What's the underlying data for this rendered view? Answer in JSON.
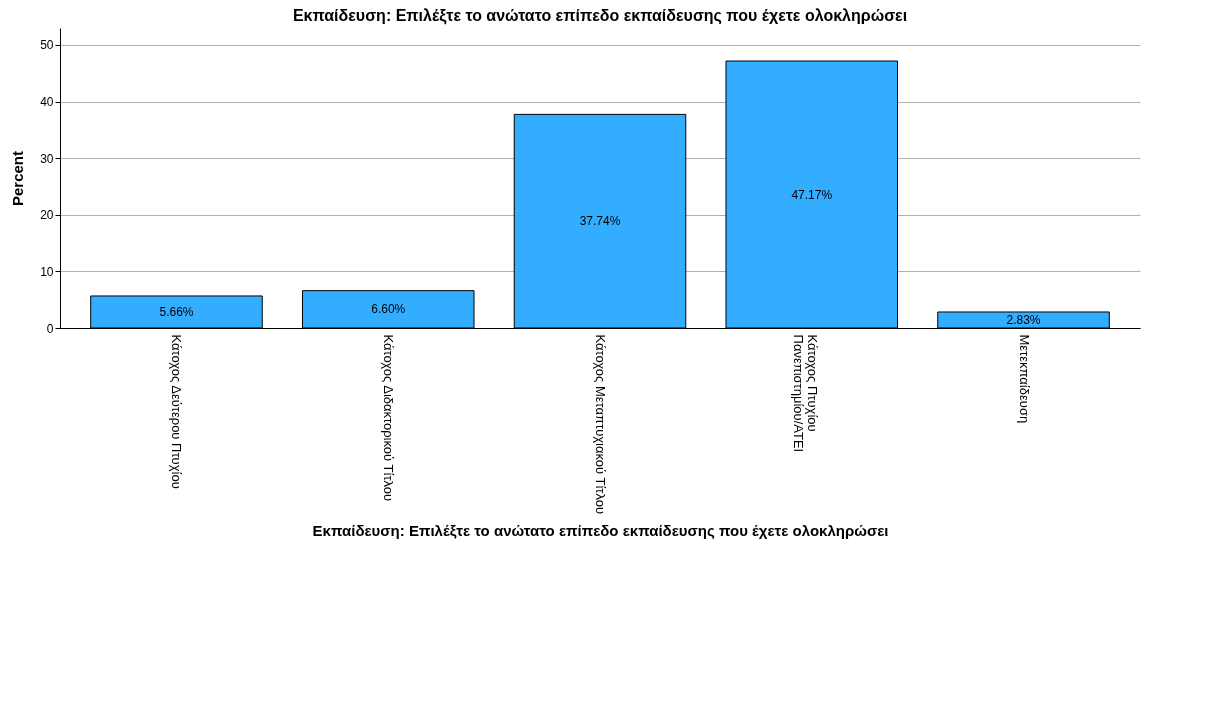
{
  "chart_data": {
    "type": "bar",
    "title": "Εκπαίδευση: Επιλέξτε το ανώτατο επίπεδο εκπαίδευσης που έχετε ολοκληρώσει",
    "xlabel": "Εκπαίδευση: Επιλέξτε το ανώτατο επίπεδο εκπαίδευσης που έχετε ολοκληρώσει",
    "ylabel": "Percent",
    "categories": [
      "Κάτοχος Δεύτερου Πτυχίου",
      "Κάτοχος Διδακτορικού Τίτλου",
      "Κάτοχος Μεταπτυχιακού Τίτλου",
      "Κάτοχος Πτυχίου Πανεπιστημίου/ΑΤΕΙ",
      "Μετεκπαίδευση"
    ],
    "values": [
      5.66,
      6.6,
      37.74,
      47.17,
      2.83
    ],
    "value_labels": [
      "5.66%",
      "6.60%",
      "37.74%",
      "47.17%",
      "2.83%"
    ],
    "color": "#33adff",
    "ylim": [
      0,
      53
    ],
    "yticks": [
      0,
      10,
      20,
      30,
      40,
      50
    ],
    "grid": "y"
  }
}
